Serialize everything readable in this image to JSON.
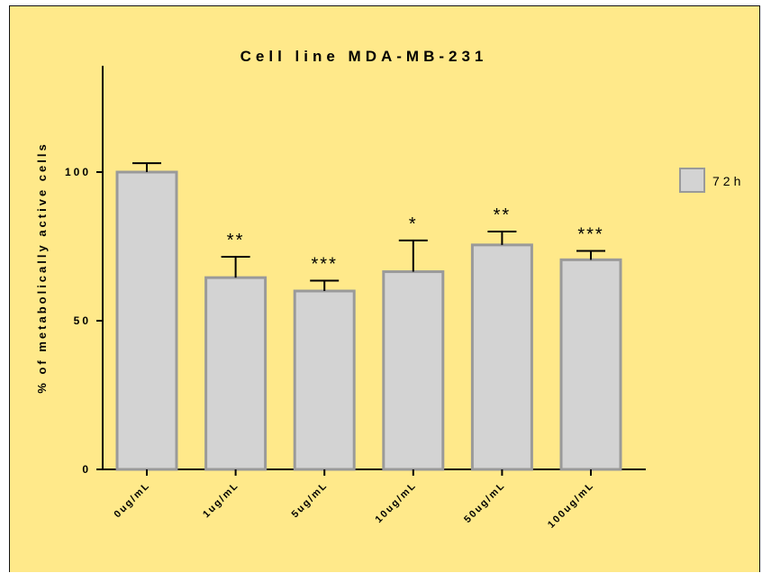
{
  "chart_data": {
    "type": "bar",
    "title": "Cell line MDA-MB-231",
    "xlabel": "",
    "ylabel": "% of metabolically active cells",
    "ylim": [
      0,
      135
    ],
    "yticks": [
      0,
      50,
      100
    ],
    "ytick_labels": [
      "0",
      "50",
      "100"
    ],
    "categories": [
      "0ug/mL",
      "1ug/mL",
      "5ug/mL",
      "10ug/mL",
      "50ug/mL",
      "100ug/mL"
    ],
    "series": [
      {
        "name": "72h",
        "values": [
          100,
          64.5,
          60,
          66.5,
          75.5,
          70.5
        ],
        "error": [
          3,
          7,
          3.5,
          10.5,
          4.5,
          3
        ],
        "significance": [
          "",
          "**",
          "***",
          "*",
          "**",
          "***"
        ],
        "color": "#d3d3d3",
        "border_color": "#9a9a9a"
      }
    ],
    "legend": "right",
    "grid": false
  },
  "colors": {
    "background": "#ffe98a",
    "bar_fill": "#d3d3d3",
    "bar_border": "#9a9a9a",
    "axis": "#000000"
  }
}
